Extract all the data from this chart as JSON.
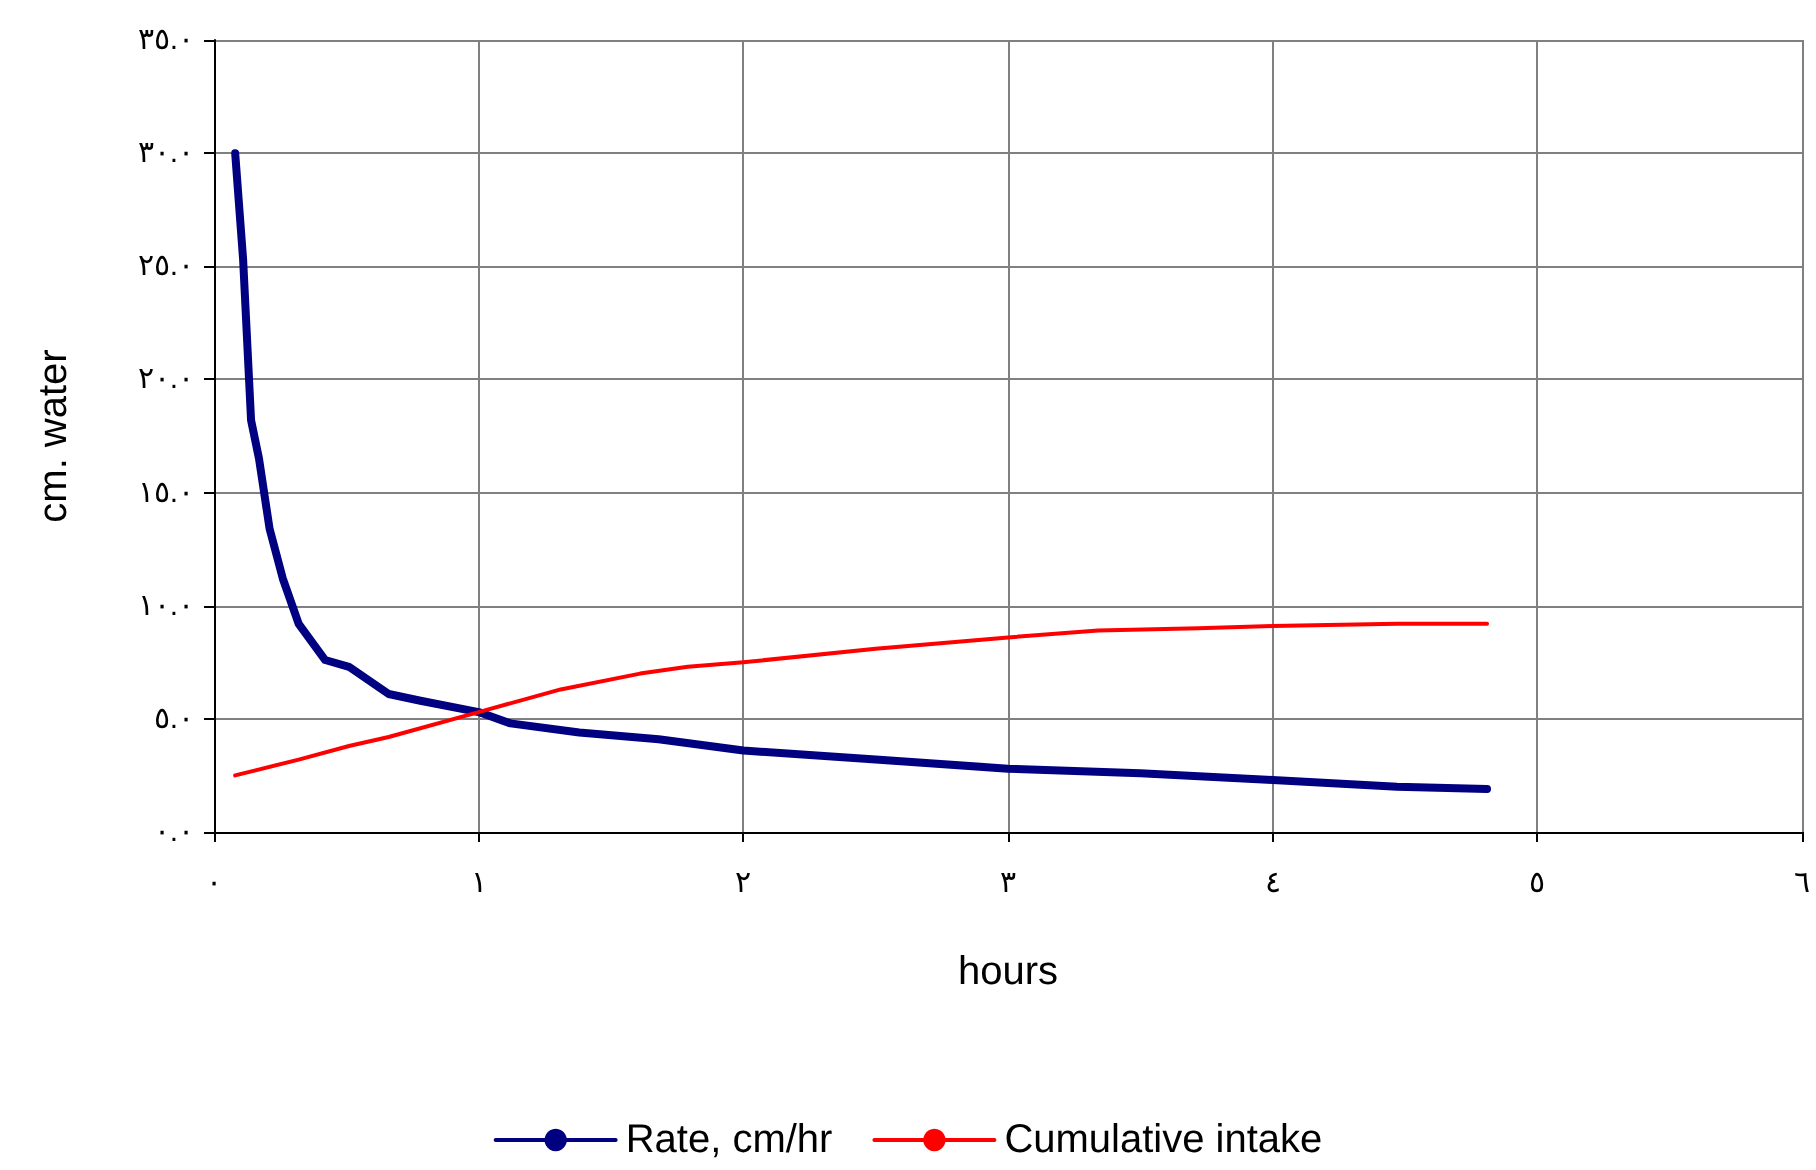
{
  "chart_data": {
    "type": "line",
    "xlabel": "hours",
    "ylabel": "cm. water",
    "xlim": [
      0,
      6
    ],
    "xticks": [
      {
        "value": 0,
        "label": "٠"
      },
      {
        "value": 1,
        "label": "١"
      },
      {
        "value": 2,
        "label": "٢"
      },
      {
        "value": 3,
        "label": "٣"
      },
      {
        "value": 4,
        "label": "٤"
      },
      {
        "value": 5,
        "label": "٥"
      },
      {
        "value": 6,
        "label": "٦"
      }
    ],
    "ylim": [
      0,
      35
    ],
    "yticks": [
      {
        "value": 0,
        "label": "٠.٠"
      },
      {
        "value": 5,
        "label": "٥.٠"
      },
      {
        "value": 10,
        "label": "١٠.٠"
      },
      {
        "value": 15,
        "label": "١٥.٠"
      },
      {
        "value": 20,
        "label": "٢٠.٠"
      },
      {
        "value": 25,
        "label": "٢٥.٠"
      },
      {
        "value": 30,
        "label": "٣٠.٠"
      },
      {
        "value": 35,
        "label": "٣٥.٠"
      }
    ],
    "grid": true,
    "legend": "bottom",
    "marker": "none",
    "line_style": "solid",
    "series": [
      {
        "name": "Rate, cm/hr",
        "color": "#000080",
        "x": [
          0.08,
          0.11,
          0.14,
          0.17,
          0.21,
          0.26,
          0.32,
          0.42,
          0.51,
          0.66,
          0.78,
          1.0,
          1.12,
          1.38,
          1.68,
          2.0,
          2.5,
          3.0,
          3.5,
          4.0,
          4.47,
          4.81
        ],
        "values": [
          30,
          25.3,
          18.2,
          16.5,
          13.4,
          11.2,
          9.2,
          7.6,
          7.3,
          6.1,
          5.8,
          5.3,
          4.8,
          4.4,
          4.1,
          3.6,
          3.2,
          2.8,
          2.6,
          2.3,
          2.0,
          1.9
        ]
      },
      {
        "name": "Cumulative intake",
        "color": "#ff0000",
        "x": [
          0.08,
          0.32,
          0.51,
          0.66,
          1.0,
          1.31,
          1.61,
          1.79,
          2.0,
          2.5,
          3.0,
          3.34,
          3.72,
          4.0,
          4.47,
          4.81
        ],
        "values": [
          2.5,
          3.2,
          3.8,
          4.2,
          5.3,
          6.3,
          7.0,
          7.3,
          7.5,
          8.1,
          8.6,
          8.9,
          9.0,
          9.1,
          9.2,
          9.2
        ]
      }
    ]
  }
}
